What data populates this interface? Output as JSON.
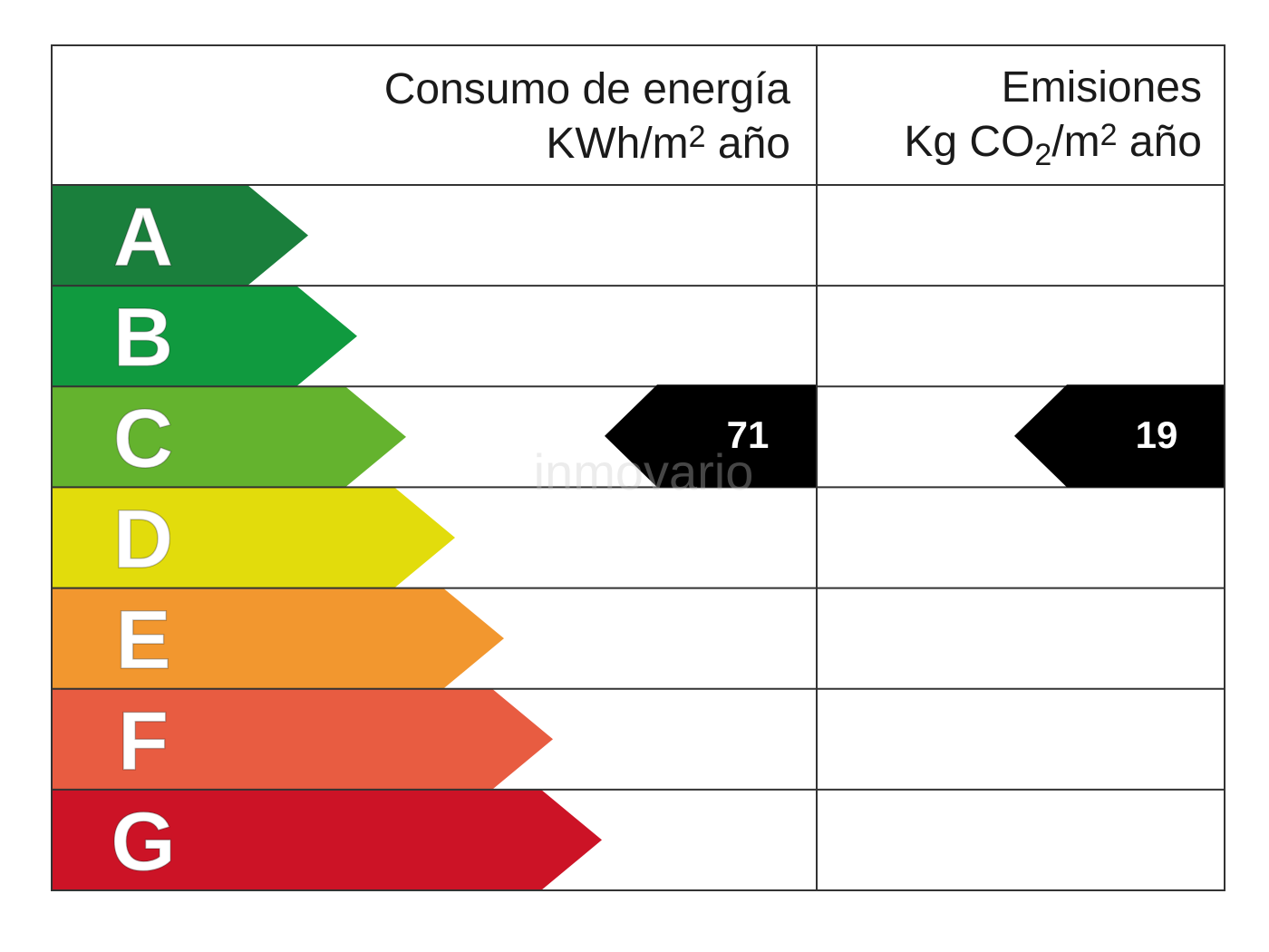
{
  "energy_header": {
    "title": "Consumo de energía",
    "unit_parts": [
      "KWh/m",
      "2",
      " año"
    ]
  },
  "emissions_header": {
    "title": "Emisiones",
    "unit_parts": [
      "Kg CO",
      "2",
      "/m",
      "2",
      " año"
    ]
  },
  "classes": [
    {
      "letter": "A",
      "color": "#1a7f3c"
    },
    {
      "letter": "B",
      "color": "#109a3f"
    },
    {
      "letter": "C",
      "color": "#64b32e"
    },
    {
      "letter": "D",
      "color": "#e2dc0c"
    },
    {
      "letter": "E",
      "color": "#f2972f"
    },
    {
      "letter": "F",
      "color": "#e85c41"
    },
    {
      "letter": "G",
      "color": "#cc1326"
    }
  ],
  "energy_rating": {
    "value": 71,
    "class": "C"
  },
  "emissions_rating": {
    "value": 19,
    "class": "C"
  },
  "watermark": "inmovario"
}
